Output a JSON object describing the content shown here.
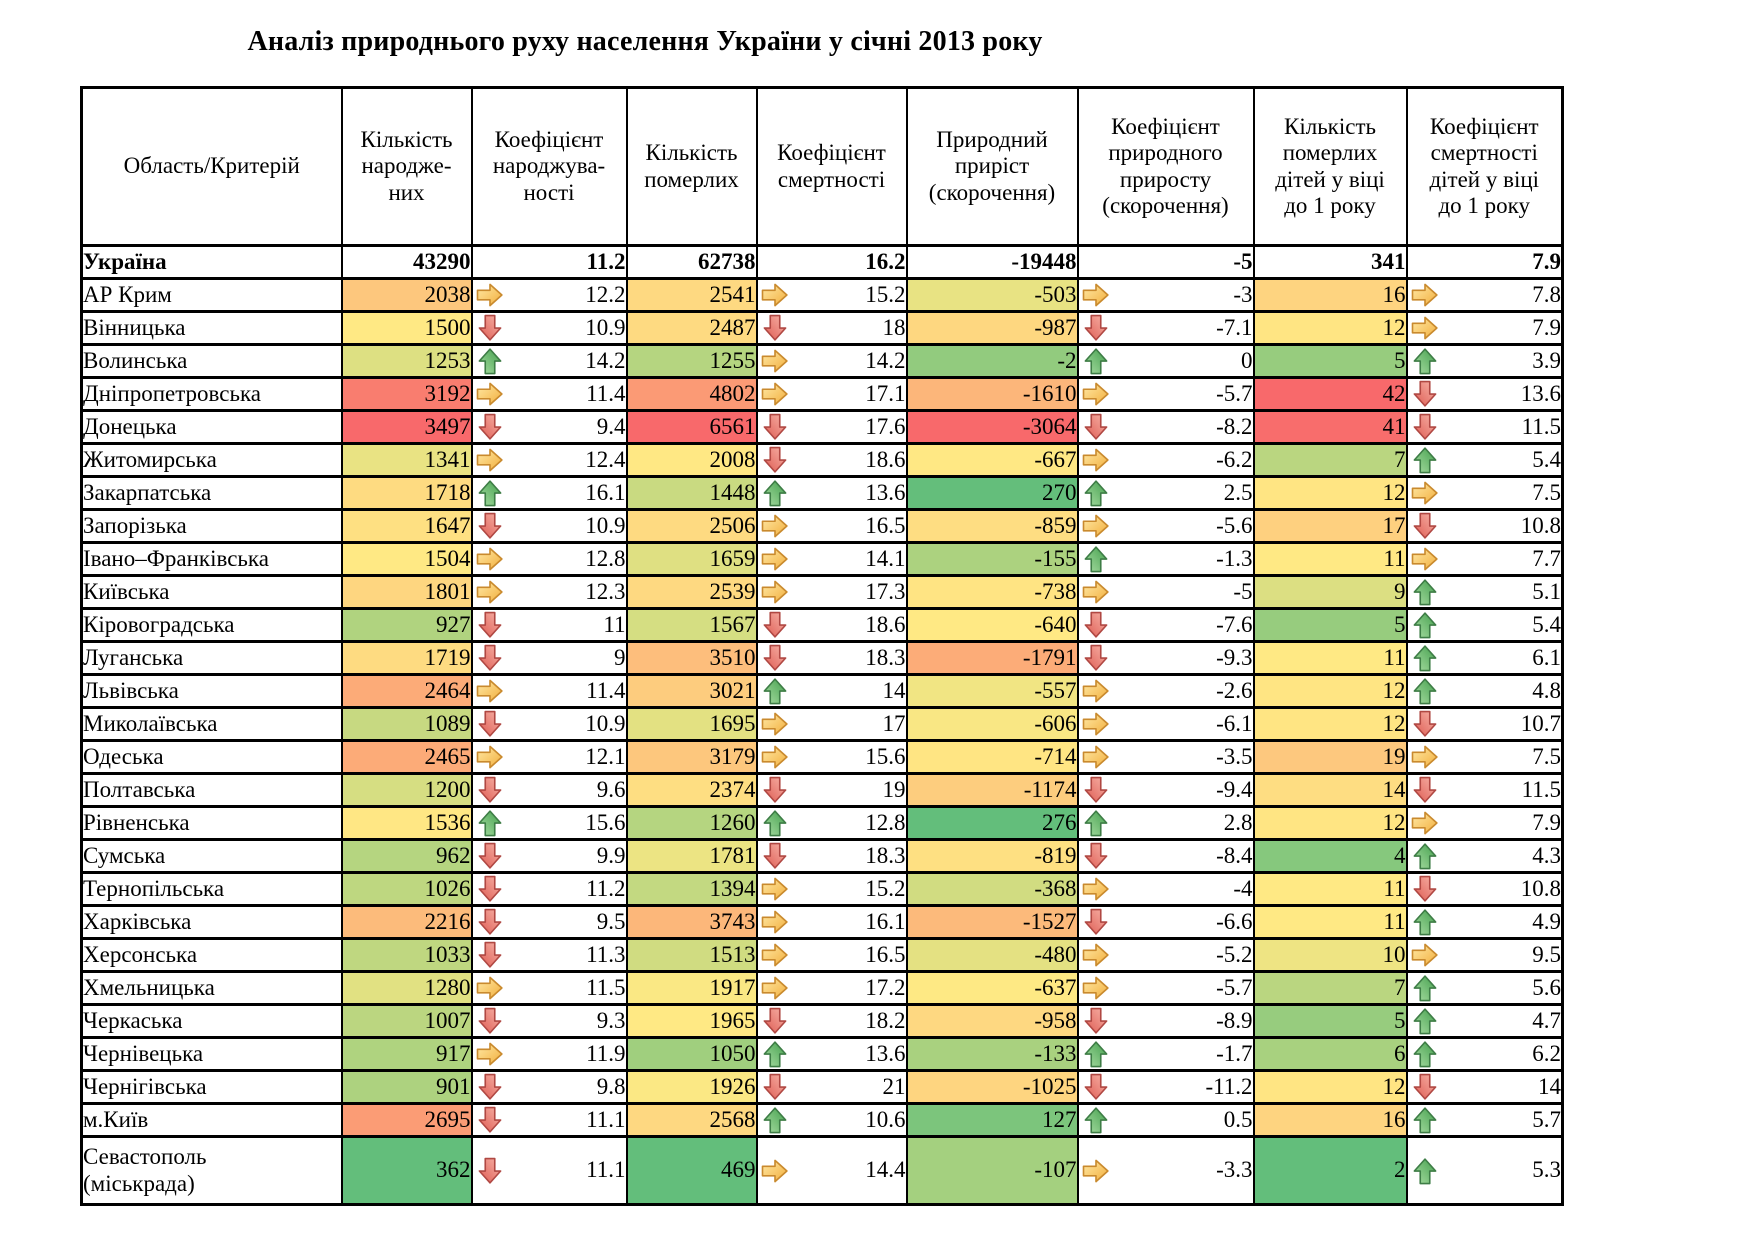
{
  "title": "Аналіз природнього руху населення України у січні  2013 року",
  "columns": [
    "Область/Критерій",
    "Кількість\nнародже-\nних",
    "Коефіцієнт\nнароджува-\nності",
    "Кількість\nпомерлих",
    "Коефіцієнт\nсмертності",
    "Природний\nприріст\n(скорочення)",
    "Коефіцієнт\nприродного\nприросту\n(скорочення)",
    "Кількість\nпомерлих\nдітей у віці\nдо 1 року",
    "Коефіцієнт\nсмертності\nдітей у віці\nдо 1 року"
  ],
  "ukraine": {
    "region": "Україна",
    "births": "43290",
    "birth_rate": "11.2",
    "deaths": "62738",
    "death_rate": "16.2",
    "natural": "-19448",
    "natural_rate": "-5",
    "infant": "341",
    "infant_rate": "7.9"
  },
  "rows": [
    {
      "region": "АР Крим",
      "births": 2038,
      "birth_arrow": "right",
      "birth_rate": "12.2",
      "deaths": 2541,
      "death_arrow": "right",
      "death_rate": "15.2",
      "natural": -503,
      "natural_arrow": "right",
      "natural_rate": "-3",
      "infant": 16,
      "infant_arrow": "right",
      "infant_rate": "7.8"
    },
    {
      "region": "Вінницька",
      "births": 1500,
      "birth_arrow": "down",
      "birth_rate": "10.9",
      "deaths": 2487,
      "death_arrow": "down",
      "death_rate": "18",
      "natural": -987,
      "natural_arrow": "down",
      "natural_rate": "-7.1",
      "infant": 12,
      "infant_arrow": "right",
      "infant_rate": "7.9"
    },
    {
      "region": "Волинська",
      "births": 1253,
      "birth_arrow": "up",
      "birth_rate": "14.2",
      "deaths": 1255,
      "death_arrow": "right",
      "death_rate": "14.2",
      "natural": -2,
      "natural_arrow": "up",
      "natural_rate": "0",
      "infant": 5,
      "infant_arrow": "up",
      "infant_rate": "3.9"
    },
    {
      "region": "Дніпропетровська",
      "births": 3192,
      "birth_arrow": "right",
      "birth_rate": "11.4",
      "deaths": 4802,
      "death_arrow": "right",
      "death_rate": "17.1",
      "natural": -1610,
      "natural_arrow": "right",
      "natural_rate": "-5.7",
      "infant": 42,
      "infant_arrow": "down",
      "infant_rate": "13.6"
    },
    {
      "region": "Донецька",
      "births": 3497,
      "birth_arrow": "down",
      "birth_rate": "9.4",
      "deaths": 6561,
      "death_arrow": "down",
      "death_rate": "17.6",
      "natural": -3064,
      "natural_arrow": "down",
      "natural_rate": "-8.2",
      "infant": 41,
      "infant_arrow": "down",
      "infant_rate": "11.5"
    },
    {
      "region": "Житомирська",
      "births": 1341,
      "birth_arrow": "right",
      "birth_rate": "12.4",
      "deaths": 2008,
      "death_arrow": "down",
      "death_rate": "18.6",
      "natural": -667,
      "natural_arrow": "right",
      "natural_rate": "-6.2",
      "infant": 7,
      "infant_arrow": "up",
      "infant_rate": "5.4"
    },
    {
      "region": "Закарпатська",
      "births": 1718,
      "birth_arrow": "up",
      "birth_rate": "16.1",
      "deaths": 1448,
      "death_arrow": "up",
      "death_rate": "13.6",
      "natural": 270,
      "natural_arrow": "up",
      "natural_rate": "2.5",
      "infant": 12,
      "infant_arrow": "right",
      "infant_rate": "7.5"
    },
    {
      "region": "Запорізька",
      "births": 1647,
      "birth_arrow": "down",
      "birth_rate": "10.9",
      "deaths": 2506,
      "death_arrow": "right",
      "death_rate": "16.5",
      "natural": -859,
      "natural_arrow": "right",
      "natural_rate": "-5.6",
      "infant": 17,
      "infant_arrow": "down",
      "infant_rate": "10.8"
    },
    {
      "region": "Івано–Франківська",
      "births": 1504,
      "birth_arrow": "right",
      "birth_rate": "12.8",
      "deaths": 1659,
      "death_arrow": "right",
      "death_rate": "14.1",
      "natural": -155,
      "natural_arrow": "up",
      "natural_rate": "-1.3",
      "infant": 11,
      "infant_arrow": "right",
      "infant_rate": "7.7"
    },
    {
      "region": "Київська",
      "births": 1801,
      "birth_arrow": "right",
      "birth_rate": "12.3",
      "deaths": 2539,
      "death_arrow": "right",
      "death_rate": "17.3",
      "natural": -738,
      "natural_arrow": "right",
      "natural_rate": "-5",
      "infant": 9,
      "infant_arrow": "up",
      "infant_rate": "5.1"
    },
    {
      "region": "Кіровоградська",
      "births": 927,
      "birth_arrow": "down",
      "birth_rate": "11",
      "deaths": 1567,
      "death_arrow": "down",
      "death_rate": "18.6",
      "natural": -640,
      "natural_arrow": "down",
      "natural_rate": "-7.6",
      "infant": 5,
      "infant_arrow": "up",
      "infant_rate": "5.4"
    },
    {
      "region": "Луганська",
      "births": 1719,
      "birth_arrow": "down",
      "birth_rate": "9",
      "deaths": 3510,
      "death_arrow": "down",
      "death_rate": "18.3",
      "natural": -1791,
      "natural_arrow": "down",
      "natural_rate": "-9.3",
      "infant": 11,
      "infant_arrow": "up",
      "infant_rate": "6.1"
    },
    {
      "region": "Львівська",
      "births": 2464,
      "birth_arrow": "right",
      "birth_rate": "11.4",
      "deaths": 3021,
      "death_arrow": "up",
      "death_rate": "14",
      "natural": -557,
      "natural_arrow": "right",
      "natural_rate": "-2.6",
      "infant": 12,
      "infant_arrow": "up",
      "infant_rate": "4.8"
    },
    {
      "region": "Миколаївська",
      "births": 1089,
      "birth_arrow": "down",
      "birth_rate": "10.9",
      "deaths": 1695,
      "death_arrow": "right",
      "death_rate": "17",
      "natural": -606,
      "natural_arrow": "right",
      "natural_rate": "-6.1",
      "infant": 12,
      "infant_arrow": "down",
      "infant_rate": "10.7"
    },
    {
      "region": "Одеська",
      "births": 2465,
      "birth_arrow": "right",
      "birth_rate": "12.1",
      "deaths": 3179,
      "death_arrow": "right",
      "death_rate": "15.6",
      "natural": -714,
      "natural_arrow": "right",
      "natural_rate": "-3.5",
      "infant": 19,
      "infant_arrow": "right",
      "infant_rate": "7.5"
    },
    {
      "region": "Полтавська",
      "births": 1200,
      "birth_arrow": "down",
      "birth_rate": "9.6",
      "deaths": 2374,
      "death_arrow": "down",
      "death_rate": "19",
      "natural": -1174,
      "natural_arrow": "down",
      "natural_rate": "-9.4",
      "infant": 14,
      "infant_arrow": "down",
      "infant_rate": "11.5"
    },
    {
      "region": "Рівненська",
      "births": 1536,
      "birth_arrow": "up",
      "birth_rate": "15.6",
      "deaths": 1260,
      "death_arrow": "up",
      "death_rate": "12.8",
      "natural": 276,
      "natural_arrow": "up",
      "natural_rate": "2.8",
      "infant": 12,
      "infant_arrow": "right",
      "infant_rate": "7.9"
    },
    {
      "region": "Сумська",
      "births": 962,
      "birth_arrow": "down",
      "birth_rate": "9.9",
      "deaths": 1781,
      "death_arrow": "down",
      "death_rate": "18.3",
      "natural": -819,
      "natural_arrow": "down",
      "natural_rate": "-8.4",
      "infant": 4,
      "infant_arrow": "up",
      "infant_rate": "4.3"
    },
    {
      "region": "Тернопільська",
      "births": 1026,
      "birth_arrow": "down",
      "birth_rate": "11.2",
      "deaths": 1394,
      "death_arrow": "right",
      "death_rate": "15.2",
      "natural": -368,
      "natural_arrow": "right",
      "natural_rate": "-4",
      "infant": 11,
      "infant_arrow": "down",
      "infant_rate": "10.8"
    },
    {
      "region": "Харківська",
      "births": 2216,
      "birth_arrow": "down",
      "birth_rate": "9.5",
      "deaths": 3743,
      "death_arrow": "right",
      "death_rate": "16.1",
      "natural": -1527,
      "natural_arrow": "down",
      "natural_rate": "-6.6",
      "infant": 11,
      "infant_arrow": "up",
      "infant_rate": "4.9"
    },
    {
      "region": "Херсонська",
      "births": 1033,
      "birth_arrow": "down",
      "birth_rate": "11.3",
      "deaths": 1513,
      "death_arrow": "right",
      "death_rate": "16.5",
      "natural": -480,
      "natural_arrow": "right",
      "natural_rate": "-5.2",
      "infant": 10,
      "infant_arrow": "right",
      "infant_rate": "9.5"
    },
    {
      "region": "Хмельницька",
      "births": 1280,
      "birth_arrow": "right",
      "birth_rate": "11.5",
      "deaths": 1917,
      "death_arrow": "right",
      "death_rate": "17.2",
      "natural": -637,
      "natural_arrow": "right",
      "natural_rate": "-5.7",
      "infant": 7,
      "infant_arrow": "up",
      "infant_rate": "5.6"
    },
    {
      "region": "Черкаська",
      "births": 1007,
      "birth_arrow": "down",
      "birth_rate": "9.3",
      "deaths": 1965,
      "death_arrow": "down",
      "death_rate": "18.2",
      "natural": -958,
      "natural_arrow": "down",
      "natural_rate": "-8.9",
      "infant": 5,
      "infant_arrow": "up",
      "infant_rate": "4.7"
    },
    {
      "region": "Чернівецька",
      "births": 917,
      "birth_arrow": "right",
      "birth_rate": "11.9",
      "deaths": 1050,
      "death_arrow": "up",
      "death_rate": "13.6",
      "natural": -133,
      "natural_arrow": "up",
      "natural_rate": "-1.7",
      "infant": 6,
      "infant_arrow": "up",
      "infant_rate": "6.2"
    },
    {
      "region": "Чернігівська",
      "births": 901,
      "birth_arrow": "down",
      "birth_rate": "9.8",
      "deaths": 1926,
      "death_arrow": "down",
      "death_rate": "21",
      "natural": -1025,
      "natural_arrow": "down",
      "natural_rate": "-11.2",
      "infant": 12,
      "infant_arrow": "down",
      "infant_rate": "14"
    },
    {
      "region": "м.Київ",
      "births": 2695,
      "birth_arrow": "down",
      "birth_rate": "11.1",
      "deaths": 2568,
      "death_arrow": "up",
      "death_rate": "10.6",
      "natural": 127,
      "natural_arrow": "up",
      "natural_rate": "0.5",
      "infant": 16,
      "infant_arrow": "up",
      "infant_rate": "5.7"
    },
    {
      "region": "Севастополь\n(міськрада)",
      "births": 362,
      "birth_arrow": "down",
      "birth_rate": "11.1",
      "deaths": 469,
      "death_arrow": "right",
      "death_rate": "14.4",
      "natural": -107,
      "natural_arrow": "right",
      "natural_rate": "-3.3",
      "infant": 2,
      "infant_arrow": "up",
      "infant_rate": "5.3"
    }
  ],
  "heatmap": {
    "births": {
      "stops": [
        362,
        1500,
        3497
      ],
      "colors": [
        "#63BE7B",
        "#FFE984",
        "#F8696B"
      ]
    },
    "deaths": {
      "stops": [
        469,
        1965,
        6561
      ],
      "colors": [
        "#63BE7B",
        "#FFE984",
        "#F8696B"
      ]
    },
    "natural": {
      "stops": [
        -3064,
        -640,
        276
      ],
      "colors": [
        "#F8696B",
        "#FFE984",
        "#63BE7B"
      ]
    },
    "infant": {
      "stops": [
        2,
        11,
        42
      ],
      "colors": [
        "#63BE7B",
        "#FFE984",
        "#F8696B"
      ]
    }
  },
  "arrows": {
    "up": {
      "grad": [
        "#A8DDA2",
        "#44A04E"
      ],
      "stroke": "#3E7D46"
    },
    "down": {
      "grad": [
        "#F7B3A8",
        "#DE5B52"
      ],
      "stroke": "#B04843"
    },
    "right": {
      "grad": [
        "#FFE9A6",
        "#F2AE3C"
      ],
      "stroke": "#C98A2E"
    }
  }
}
